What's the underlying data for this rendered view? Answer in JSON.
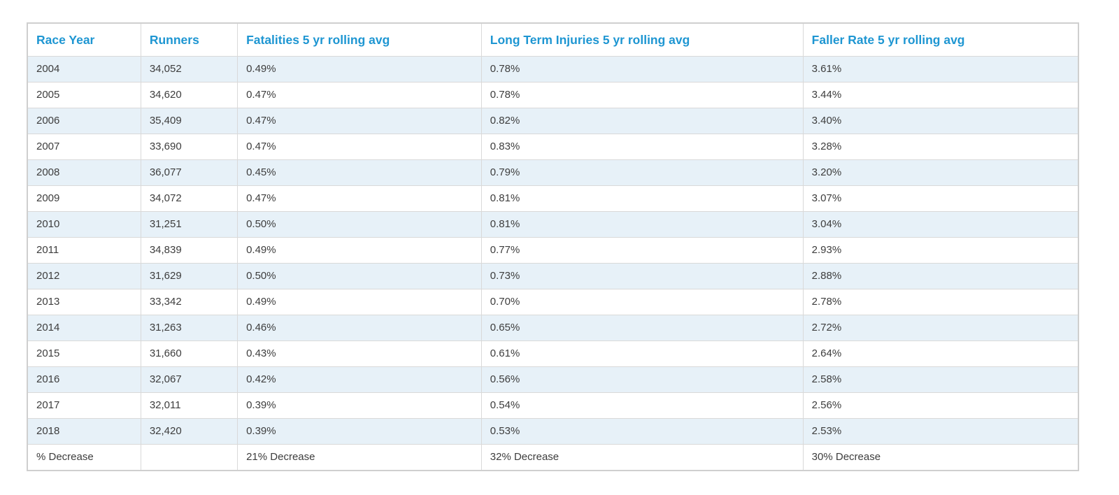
{
  "chart_data": {
    "type": "table",
    "columns": [
      "Race Year",
      "Runners",
      "Fatalities 5 yr rolling avg",
      "Long Term Injuries 5 yr rolling avg",
      "Faller Rate 5 yr rolling avg"
    ],
    "rows": [
      [
        "2004",
        "34,052",
        "0.49%",
        "0.78%",
        "3.61%"
      ],
      [
        "2005",
        "34,620",
        "0.47%",
        "0.78%",
        "3.44%"
      ],
      [
        "2006",
        "35,409",
        "0.47%",
        "0.82%",
        "3.40%"
      ],
      [
        "2007",
        "33,690",
        "0.47%",
        "0.83%",
        "3.28%"
      ],
      [
        "2008",
        "36,077",
        "0.45%",
        "0.79%",
        "3.20%"
      ],
      [
        "2009",
        "34,072",
        "0.47%",
        "0.81%",
        "3.07%"
      ],
      [
        "2010",
        "31,251",
        "0.50%",
        "0.81%",
        "3.04%"
      ],
      [
        "2011",
        "34,839",
        "0.49%",
        "0.77%",
        "2.93%"
      ],
      [
        "2012",
        "31,629",
        "0.50%",
        "0.73%",
        "2.88%"
      ],
      [
        "2013",
        "33,342",
        "0.49%",
        "0.70%",
        "2.78%"
      ],
      [
        "2014",
        "31,263",
        "0.46%",
        "0.65%",
        "2.72%"
      ],
      [
        "2015",
        "31,660",
        "0.43%",
        "0.61%",
        "2.64%"
      ],
      [
        "2016",
        "32,067",
        "0.42%",
        "0.56%",
        "2.58%"
      ],
      [
        "2017",
        "32,011",
        "0.39%",
        "0.54%",
        "2.56%"
      ],
      [
        "2018",
        "32,420",
        "0.39%",
        "0.53%",
        "2.53%"
      ]
    ],
    "footer": [
      "% Decrease",
      "",
      "21% Decrease",
      "32% Decrease",
      "30% Decrease"
    ],
    "layout_hints": {
      "striped_rows": "first data row shaded, alternating",
      "grid": "on",
      "header_position": "top"
    }
  },
  "colors": {
    "header_text": "#1e96d2",
    "row_stripe": "#e7f1f8",
    "grid_border": "#d9d9d9",
    "outer_border": "#cfcfcf",
    "body_text": "#3d3d3d"
  }
}
